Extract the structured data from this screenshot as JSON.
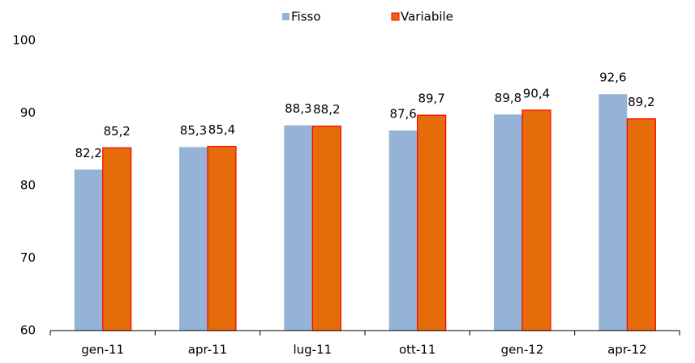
{
  "chart_data": {
    "type": "bar",
    "categories": [
      "gen-11",
      "apr-11",
      "lug-11",
      "ott-11",
      "gen-12",
      "apr-12"
    ],
    "series": [
      {
        "name": "Fisso",
        "color": "#95b3d7",
        "values": [
          82.2,
          85.3,
          88.3,
          87.6,
          89.8,
          92.6
        ],
        "value_labels": [
          "82,2",
          "85,3",
          "88,3",
          "87,6",
          "89,8",
          "92,6"
        ]
      },
      {
        "name": "Variabile",
        "color": "#e46c0a",
        "values": [
          85.2,
          85.4,
          88.2,
          89.7,
          90.4,
          89.2
        ],
        "value_labels": [
          "85,2",
          "85,4",
          "88,2",
          "89,7",
          "90,4",
          "89,2"
        ]
      }
    ],
    "ylim": [
      60,
      100
    ],
    "yticks": [
      60,
      70,
      80,
      90,
      100
    ],
    "grid": false,
    "legend": "top"
  }
}
